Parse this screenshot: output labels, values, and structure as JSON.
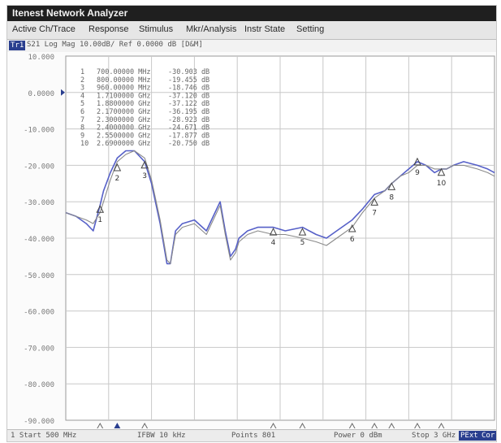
{
  "app": {
    "title": "Itenest Network Analyzer"
  },
  "menu": [
    "Active Ch/Trace",
    "Response",
    "Stimulus",
    "Mkr/Analysis",
    "Instr State",
    "Setting"
  ],
  "trace": {
    "badge": "Tr1",
    "info": "S21 Log Mag 10.00dB/ Ref  0.0000 dB [D&M]"
  },
  "status": {
    "start": "1 Start 500 MHz",
    "ifbw": "IFBW 10 kHz",
    "points": "Points 801",
    "power": "Power 0 dBm",
    "stop": "Stop 3 GHz",
    "extcal_badge": "PExt",
    "cor_badge": "Cor"
  },
  "colors": {
    "trace1": "#5660c8",
    "trace2": "#8a8a8a",
    "badge_blue": "#2a3f8f",
    "grid": "#c8c8c8"
  },
  "markers": [
    {
      "n": "1",
      "freq_label": "700.00000 MHz",
      "mhz": 700,
      "db_label": "-30.903 dB",
      "db": -30.903
    },
    {
      "n": "2",
      "freq_label": "800.00000 MHz",
      "mhz": 800,
      "db_label": "-19.455 dB",
      "db": -19.455
    },
    {
      "n": "3",
      "freq_label": "960.00000 MHz",
      "mhz": 960,
      "db_label": "-18.746 dB",
      "db": -18.746
    },
    {
      "n": "4",
      "freq_label": "1.7100000 GHz",
      "mhz": 1710,
      "db_label": "-37.120 dB",
      "db": -37.12
    },
    {
      "n": "5",
      "freq_label": "1.8800000 GHz",
      "mhz": 1880,
      "db_label": "-37.122 dB",
      "db": -37.122
    },
    {
      "n": "6",
      "freq_label": "2.1700000 GHz",
      "mhz": 2170,
      "db_label": "-36.195 dB",
      "db": -36.195
    },
    {
      "n": "7",
      "freq_label": "2.3000000 GHz",
      "mhz": 2300,
      "db_label": "-28.923 dB",
      "db": -28.923
    },
    {
      "n": "8",
      "freq_label": "2.4000000 GHz",
      "mhz": 2400,
      "db_label": "-24.671 dB",
      "db": -24.671
    },
    {
      "n": "9",
      "freq_label": "2.5500000 GHz",
      "mhz": 2550,
      "db_label": "-17.877 dB",
      "db": -17.877
    },
    {
      "n": "10",
      "freq_label": "2.6900000 GHz",
      "mhz": 2690,
      "db_label": "-20.750 dB",
      "db": -20.75
    }
  ],
  "chart_data": {
    "type": "line",
    "xlim": [
      500,
      3000
    ],
    "ylim": [
      -90,
      10
    ],
    "y_ticks": [
      "10.000",
      "0.0000",
      "-10.000",
      "-20.000",
      "-30.000",
      "-40.000",
      "-50.000",
      "-60.000",
      "-70.000",
      "-80.000",
      "-90.000"
    ],
    "grid": true,
    "series": [
      {
        "x": [
          500,
          560,
          620,
          660,
          700,
          720,
          760,
          800,
          850,
          900,
          960,
          1000,
          1050,
          1090,
          1110,
          1140,
          1180,
          1250,
          1320,
          1360,
          1400,
          1430,
          1460,
          1490,
          1510,
          1560,
          1620,
          1710,
          1780,
          1880,
          1960,
          2020,
          2080,
          2170,
          2230,
          2300,
          2360,
          2400,
          2450,
          2500,
          2550,
          2600,
          2650,
          2690,
          2720,
          2760,
          2820,
          2900,
          2960,
          3000
        ],
        "y": [
          -33,
          -34,
          -36,
          -38,
          -31,
          -27,
          -22,
          -18,
          -16,
          -16,
          -19,
          -25,
          -36,
          -47,
          -47,
          -38,
          -36,
          -35,
          -38,
          -34,
          -30,
          -38,
          -45,
          -43,
          -40,
          -38,
          -37,
          -37,
          -38,
          -37,
          -39,
          -40,
          -38,
          -35,
          -32,
          -28,
          -27,
          -25,
          -23,
          -21,
          -19,
          -20,
          -22,
          -21,
          -21,
          -20,
          -19,
          -20,
          -21,
          -22
        ]
      },
      {
        "x": [
          500,
          560,
          620,
          660,
          700,
          720,
          760,
          800,
          850,
          900,
          960,
          1000,
          1050,
          1090,
          1110,
          1140,
          1180,
          1250,
          1320,
          1360,
          1400,
          1430,
          1460,
          1490,
          1510,
          1560,
          1620,
          1710,
          1780,
          1880,
          1960,
          2020,
          2080,
          2170,
          2230,
          2300,
          2360,
          2400,
          2450,
          2500,
          2550,
          2600,
          2650,
          2690,
          2720,
          2760,
          2820,
          2900,
          2960,
          3000
        ],
        "y": [
          -33,
          -34,
          -35,
          -36,
          -33,
          -30,
          -24,
          -19,
          -17,
          -16,
          -18,
          -24,
          -35,
          -46,
          -47,
          -39,
          -37,
          -36,
          -39,
          -35,
          -31,
          -39,
          -46,
          -44,
          -41,
          -39,
          -38,
          -39,
          -39,
          -40,
          -41,
          -42,
          -40,
          -37,
          -33,
          -29,
          -27,
          -25,
          -23,
          -22,
          -20,
          -20,
          -21,
          -21,
          -21,
          -20,
          -20,
          -21,
          -22,
          -23
        ]
      }
    ]
  }
}
